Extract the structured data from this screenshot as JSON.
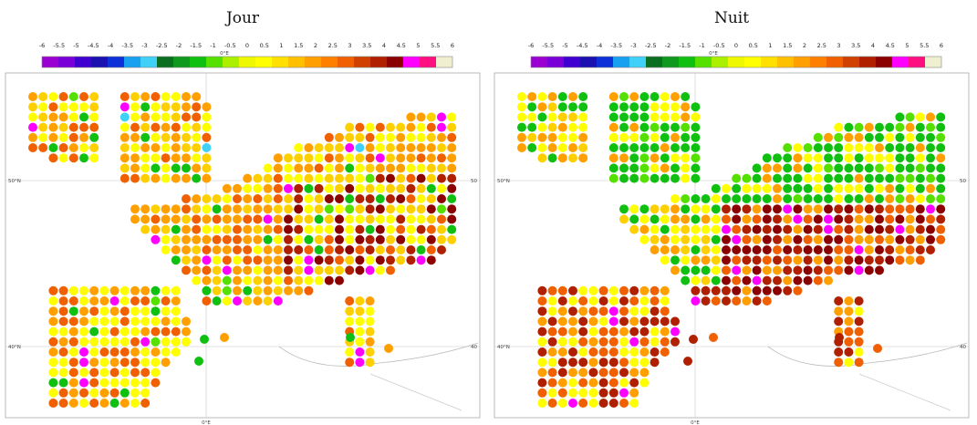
{
  "panels": [
    {
      "title": "Jour",
      "key": "day",
      "lat_labels": {
        "left": [
          "50°N",
          "40°N"
        ],
        "right": [
          "50",
          "40"
        ]
      }
    },
    {
      "title": "Nuit",
      "key": "night",
      "lat_labels": {
        "left": [
          "50°N",
          "40°N"
        ],
        "right": [
          "50",
          "40"
        ]
      }
    }
  ],
  "colorbar": {
    "ticks": [
      "-6",
      "-5.5",
      "-5",
      "-4.5",
      "-4",
      "-3.5",
      "-3",
      "-2.5",
      "-2",
      "-1.5",
      "-1",
      "-0.5",
      "0",
      "0.5",
      "1",
      "1.5",
      "2",
      "2.5",
      "3",
      "3.5",
      "4",
      "4.5",
      "5",
      "5.5",
      "6"
    ],
    "axis_label": "0°E",
    "colors": [
      "#9b00d3",
      "#7a00d8",
      "#4000d0",
      "#1b10b0",
      "#0d30d8",
      "#1aa0f0",
      "#40d0f8",
      "#0a6f1e",
      "#0f9a1f",
      "#10c010",
      "#55e000",
      "#aaf000",
      "#eef800",
      "#ffff00",
      "#ffe000",
      "#ffc000",
      "#ffa000",
      "#ff8000",
      "#f06000",
      "#d04000",
      "#b02000",
      "#8b0000",
      "#ff00ff",
      "#ff1080",
      "#f0f0d0"
    ]
  },
  "map": {
    "bottom_axis_label": "0°E"
  },
  "legend_colors": {
    "bright_yellow": "#ffff00",
    "yellow_orange": "#ffd000",
    "orange": "#ffa000",
    "dark_orange": "#f06000",
    "red_brown": "#b02000",
    "dark_red": "#8b0000",
    "magenta": "#ff00ff",
    "green": "#10c010",
    "light_green": "#55e000",
    "dark_green": "#0a6f1e",
    "cyan": "#40d0f8",
    "blue": "#1b10b0"
  }
}
